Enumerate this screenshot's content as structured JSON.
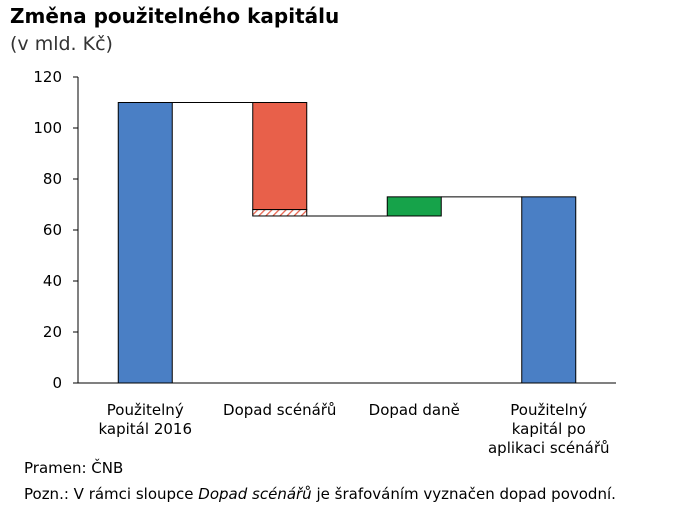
{
  "header": {
    "title": "Změna použitelného kapitálu",
    "subtitle": "(v mld. Kč)"
  },
  "footer": {
    "source": "Pramen: ČNB",
    "note_prefix": "Pozn.: V rámci sloupce",
    "note_italic": "Dopad scénářů",
    "note_suffix": "je šrafováním vyznačen dopad povodní."
  },
  "colors": {
    "capital": "#4a7fc5",
    "scenario": "#e8604a",
    "tax": "#16a34a",
    "flood_hatch": "#e8604a"
  },
  "chart_data": {
    "type": "bar",
    "subtype": "waterfall",
    "title": "Změna použitelného kapitálu",
    "subtitle": "(v mld. Kč)",
    "categories": [
      "Použitelný kapitál 2016",
      "Dopad scénářů",
      "Dopad daně",
      "Použitelný kapitál po aplikaci scénářů"
    ],
    "category_label_lines": [
      [
        "Použitelný",
        "kapitál 2016"
      ],
      [
        "Dopad scénářů"
      ],
      [
        "Dopad daně"
      ],
      [
        "Použitelný",
        "kapitál po",
        "aplikaci scénářů"
      ]
    ],
    "bars": [
      {
        "category": "Použitelný kapitál 2016",
        "kind": "total",
        "start": 0,
        "end": 110
      },
      {
        "category": "Dopad scénářů",
        "kind": "decrease",
        "start": 110,
        "end": 65.5,
        "hatched_portion": [
          65.5,
          68
        ]
      },
      {
        "category": "Dopad daně",
        "kind": "increase",
        "start": 65.5,
        "end": 73
      },
      {
        "category": "Použitelný kapitál po aplikaci scénářů",
        "kind": "total",
        "start": 0,
        "end": 73
      }
    ],
    "ylim": [
      0,
      120
    ],
    "yticks": [
      0,
      20,
      40,
      60,
      80,
      100,
      120
    ],
    "grid": false,
    "xlabel": "",
    "ylabel": ""
  }
}
